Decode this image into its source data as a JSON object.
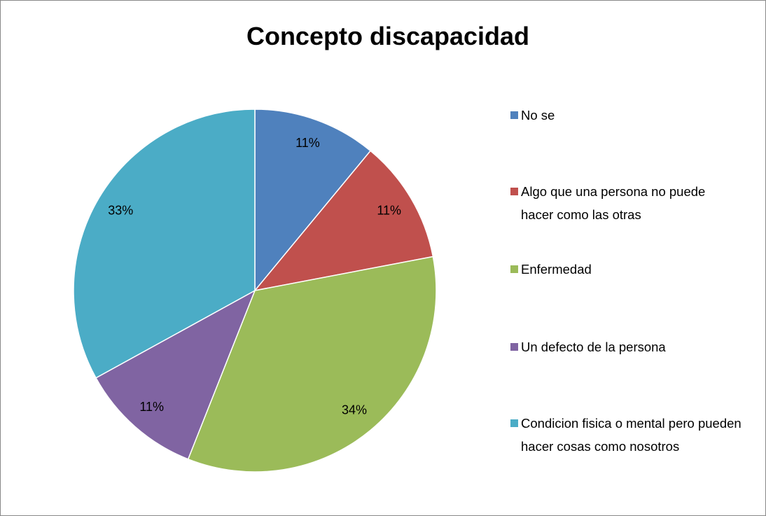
{
  "chart_data": {
    "type": "pie",
    "title": "Concepto discapacidad",
    "categories": [
      "No se",
      "Algo que una persona no puede hacer como las otras",
      "Enfermedad",
      "Un defecto de la persona",
      "Condicion fisica o mental pero pueden hacer cosas como nosotros"
    ],
    "values": [
      11,
      11,
      34,
      11,
      33
    ],
    "value_labels": [
      "11%",
      "11%",
      "34%",
      "11%",
      "33%"
    ],
    "colors": [
      "#4f81bd",
      "#c0504d",
      "#9bbb59",
      "#8064a2",
      "#4bacc6"
    ],
    "legend": "right"
  }
}
